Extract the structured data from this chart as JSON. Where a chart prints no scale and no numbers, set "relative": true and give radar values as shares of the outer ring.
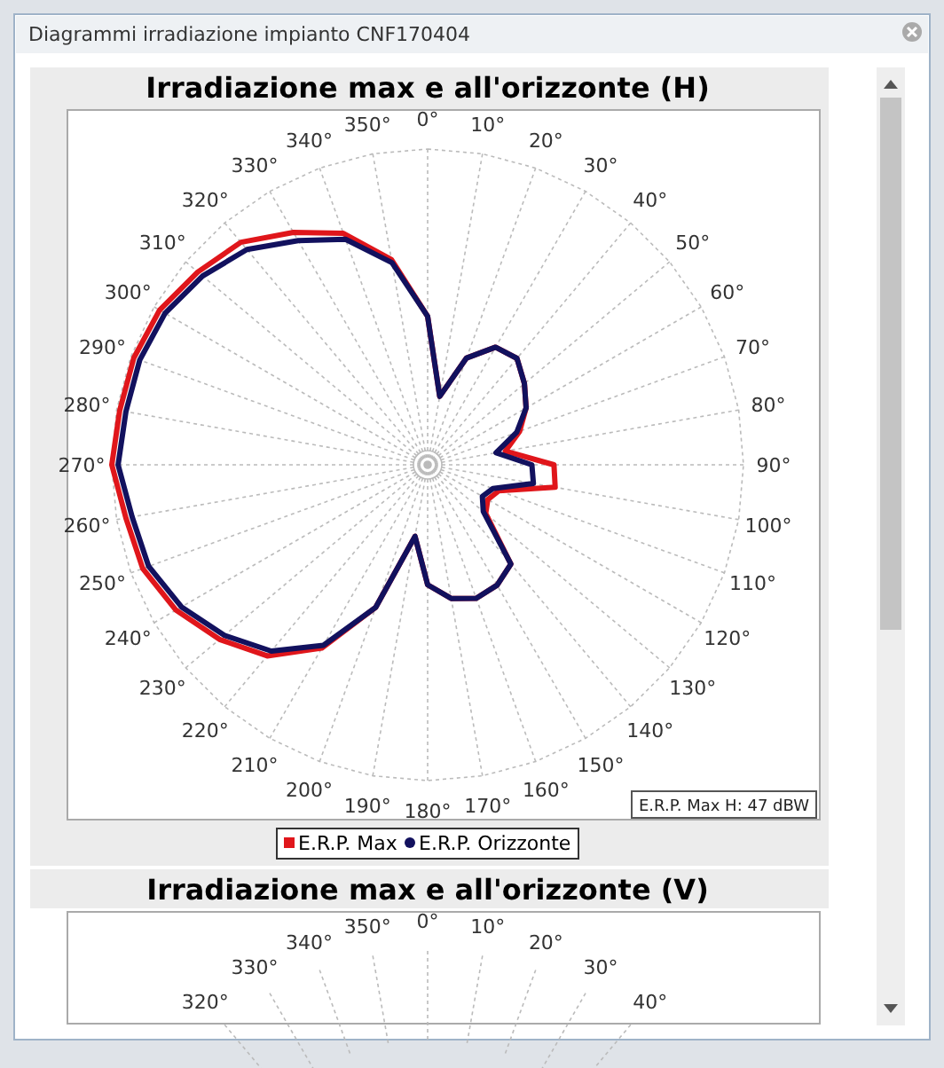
{
  "chart_data": [
    {
      "type": "radar",
      "title": "Irradiazione max e all'orizzonte (H)",
      "relative": true,
      "legend": "bottom",
      "line_style": "solid",
      "marker": "none",
      "categories": [
        "0°",
        "10°",
        "20°",
        "30°",
        "40°",
        "50°",
        "60°",
        "70°",
        "80°",
        "90°",
        "100°",
        "110°",
        "120°",
        "130°",
        "140°",
        "150°",
        "160°",
        "170°",
        "180°",
        "190°",
        "200°",
        "210°",
        "220°",
        "230°",
        "240°",
        "250°",
        "260°",
        "270°",
        "280°",
        "290°",
        "300°",
        "310°",
        "320°",
        "330°",
        "340°",
        "350°"
      ],
      "series": [
        {
          "name": "E.R.P. Max",
          "color": "#e0161b",
          "values": [
            0.47,
            0.22,
            0.36,
            0.43,
            0.44,
            0.4,
            0.36,
            0.31,
            0.25,
            0.4,
            0.41,
            0.24,
            0.22,
            0.24,
            0.41,
            0.44,
            0.45,
            0.43,
            0.38,
            0.23,
            0.48,
            0.67,
            0.79,
            0.86,
            0.92,
            0.96,
            0.97,
            1.0,
            0.99,
            0.99,
            0.98,
            0.95,
            0.92,
            0.85,
            0.78,
            0.66
          ]
        },
        {
          "name": "E.R.P. Orizzonte",
          "color": "#12115e",
          "values": [
            0.47,
            0.22,
            0.36,
            0.43,
            0.44,
            0.4,
            0.36,
            0.3,
            0.22,
            0.33,
            0.34,
            0.22,
            0.2,
            0.23,
            0.41,
            0.44,
            0.45,
            0.43,
            0.38,
            0.23,
            0.48,
            0.66,
            0.77,
            0.84,
            0.9,
            0.94,
            0.95,
            0.98,
            0.97,
            0.97,
            0.96,
            0.93,
            0.89,
            0.82,
            0.76,
            0.65
          ]
        }
      ],
      "annotations": [
        "Diagrammi irradiazione impianto CNF170404",
        "E.R.P. Max H: 47 dBW"
      ]
    },
    {
      "type": "other",
      "title": "Irradiazione max e all'orizzonte (V)",
      "annotations": [
        "320°",
        "330°",
        "340°",
        "350°",
        "0°",
        "10°",
        "20°",
        "30°",
        "40°"
      ]
    }
  ]
}
